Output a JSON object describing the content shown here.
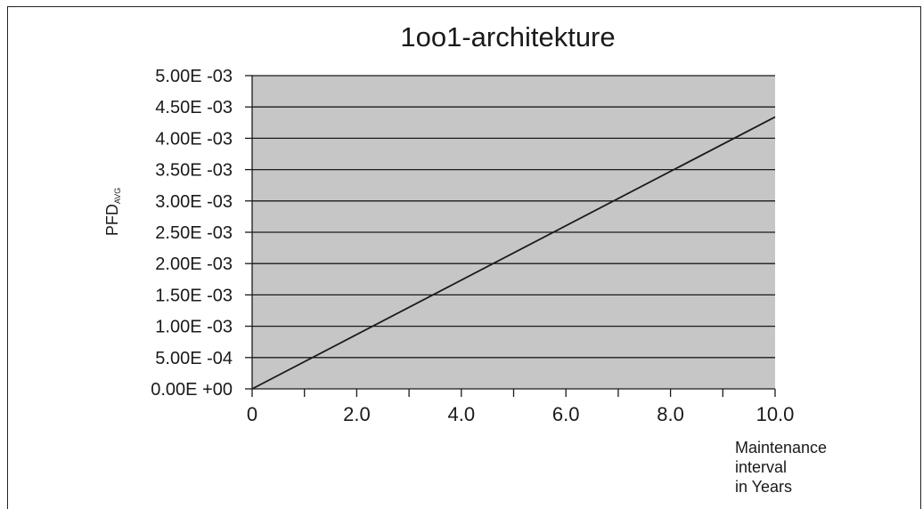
{
  "chart_data": {
    "type": "line",
    "title": "1oo1-architekture",
    "ylabel_main": "PFD",
    "ylabel_sub": "AVG",
    "xlabel_lines": [
      "Maintenance",
      "interval",
      "in Years"
    ],
    "x_ticks": [
      0,
      2,
      4,
      6,
      8,
      10
    ],
    "x_tick_labels": [
      "0",
      "2.0",
      "4.0",
      "6.0",
      "8.0",
      "10.0"
    ],
    "x_minor_ticks": [
      1,
      3,
      5,
      7,
      9
    ],
    "y_ticks": [
      0,
      0.0005,
      0.001,
      0.0015,
      0.002,
      0.0025,
      0.003,
      0.0035,
      0.004,
      0.0045,
      0.005
    ],
    "y_tick_labels": [
      "0.00E +00",
      "5.00E -04",
      "1.00E -03",
      "1.50E -03",
      "2.00E -03",
      "2.50E -03",
      "3.00E -03",
      "3.50E -03",
      "4.00E -03",
      "4.50E -03",
      "5.00E -03"
    ],
    "xlim": [
      0,
      10
    ],
    "ylim": [
      0,
      0.005
    ],
    "grid": true,
    "series": [
      {
        "x": [
          0,
          10
        ],
        "y": [
          0,
          0.00434
        ]
      }
    ],
    "colors": {
      "plot_background": "#c6c6c6",
      "line": "#1a1a1a",
      "grid": "#1a1a1a"
    }
  }
}
